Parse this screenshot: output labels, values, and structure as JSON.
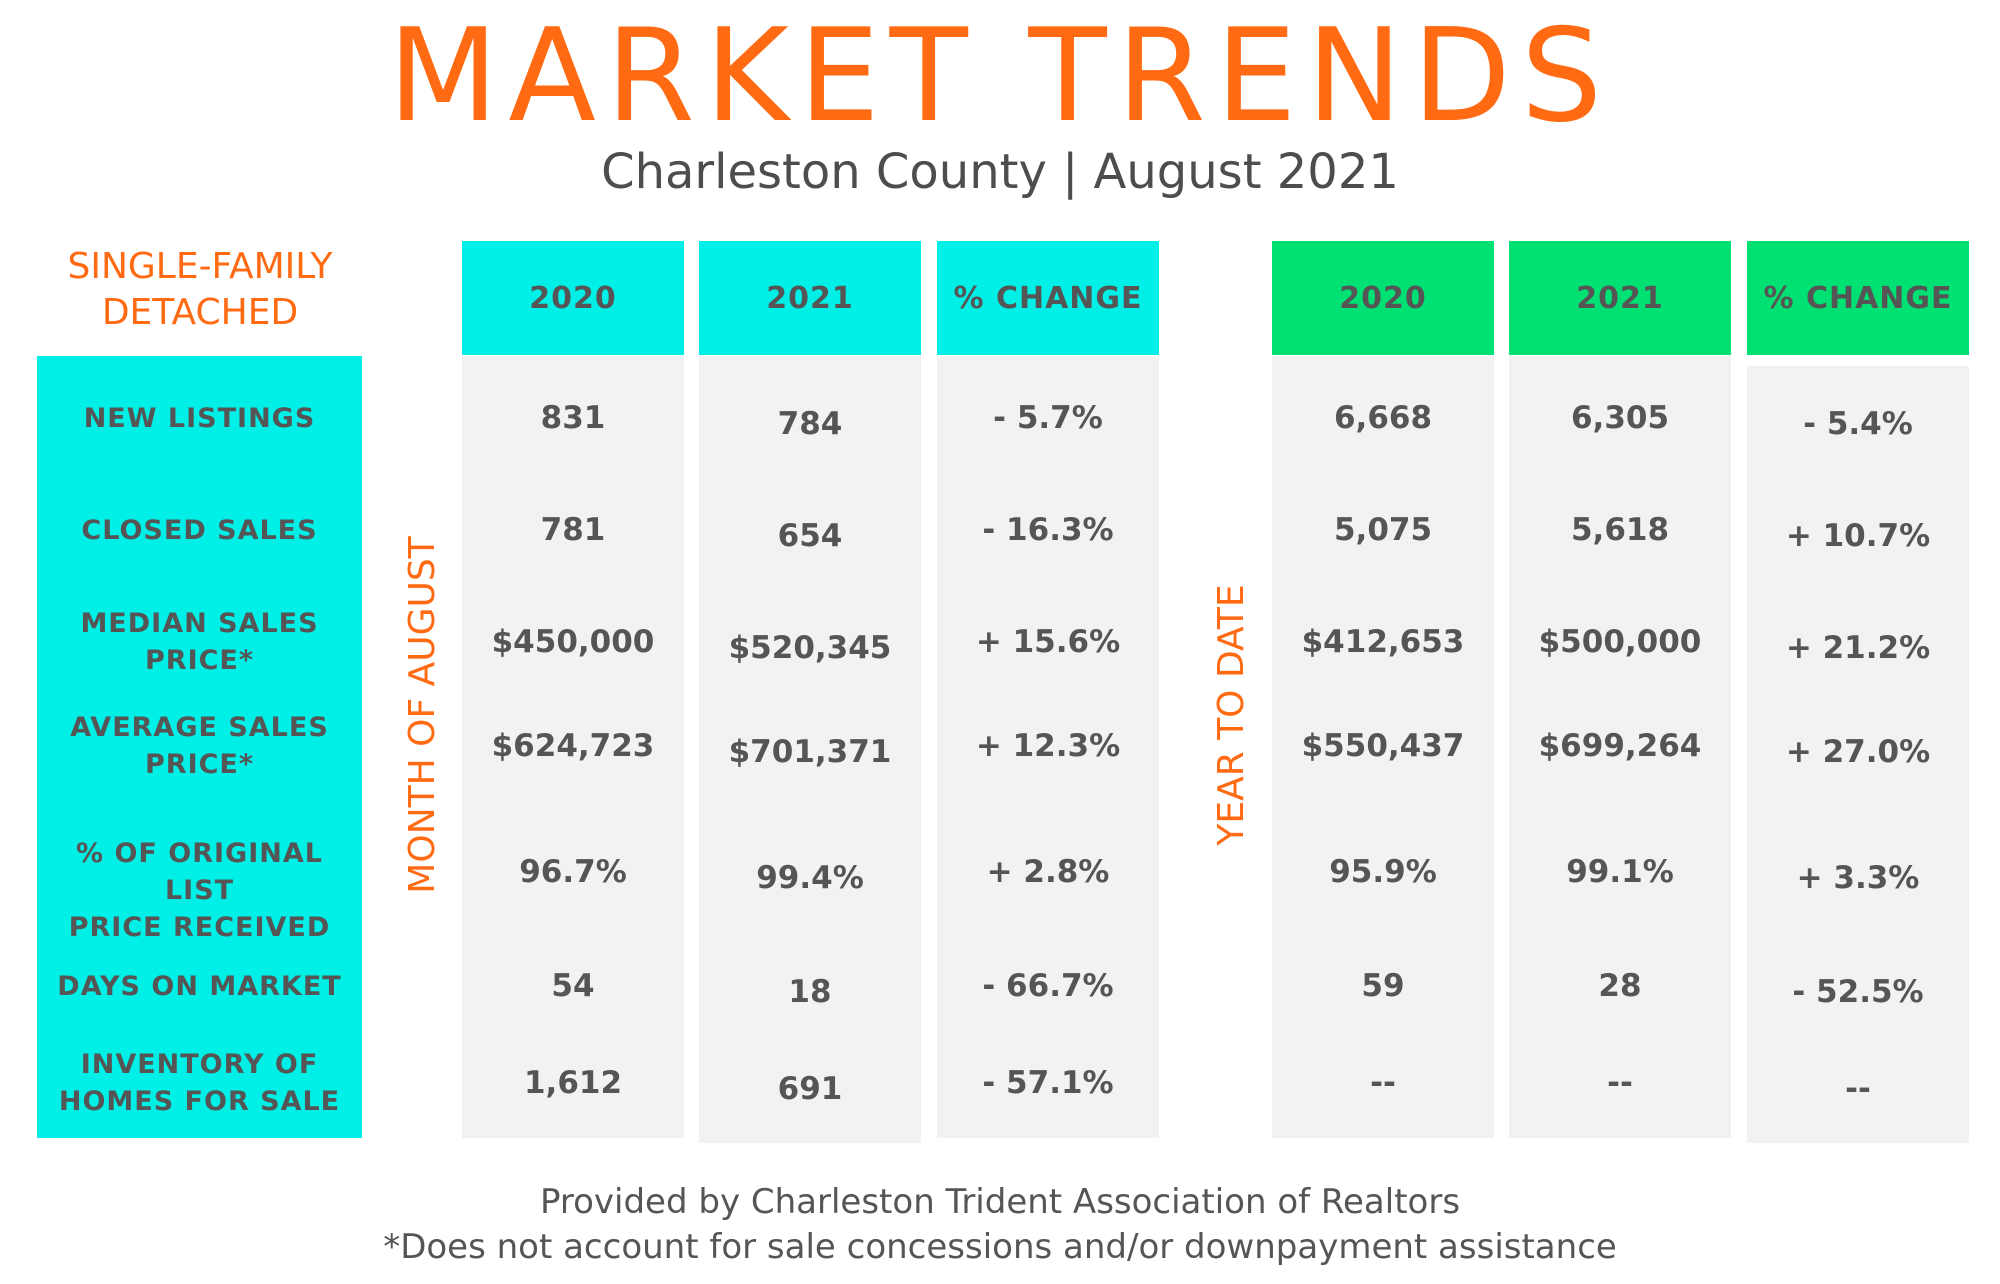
{
  "header": {
    "title": "MARKET TRENDS",
    "subtitle": "Charleston County | August 2021"
  },
  "category": [
    "SINGLE-FAMILY",
    "DETACHED"
  ],
  "colors": {
    "accent": "#ff6a13",
    "cyan": "#00efe6",
    "green": "#00e173",
    "cell_bg": "#f2f2f2",
    "text": "#555555"
  },
  "sections": {
    "month": {
      "label": "MONTH OF AUGUST",
      "headers": [
        "2020",
        "2021",
        "% CHANGE"
      ]
    },
    "ytd": {
      "label": "YEAR TO DATE",
      "headers": [
        "2020",
        "2021",
        "% CHANGE"
      ]
    }
  },
  "rows": [
    {
      "label": [
        "NEW LISTINGS"
      ],
      "month": [
        "831",
        "784",
        "- 5.7%"
      ],
      "ytd": [
        "6,668",
        "6,305",
        "- 5.4%"
      ]
    },
    {
      "label": [
        "CLOSED SALES"
      ],
      "month": [
        "781",
        "654",
        "- 16.3%"
      ],
      "ytd": [
        "5,075",
        "5,618",
        "+ 10.7%"
      ]
    },
    {
      "label": [
        "MEDIAN SALES",
        "PRICE*"
      ],
      "month": [
        "$450,000",
        "$520,345",
        "+ 15.6%"
      ],
      "ytd": [
        "$412,653",
        "$500,000",
        "+ 21.2%"
      ]
    },
    {
      "label": [
        "AVERAGE SALES",
        "PRICE*"
      ],
      "month": [
        "$624,723",
        "$701,371",
        "+ 12.3%"
      ],
      "ytd": [
        "$550,437",
        "$699,264",
        "+ 27.0%"
      ]
    },
    {
      "label": [
        "% OF ORIGINAL LIST",
        "PRICE RECEIVED"
      ],
      "month": [
        "96.7%",
        "99.4%",
        "+ 2.8%"
      ],
      "ytd": [
        "95.9%",
        "99.1%",
        "+ 3.3%"
      ]
    },
    {
      "label": [
        "DAYS ON MARKET"
      ],
      "month": [
        "54",
        "18",
        "- 66.7%"
      ],
      "ytd": [
        "59",
        "28",
        "- 52.5%"
      ]
    },
    {
      "label": [
        "INVENTORY OF",
        "HOMES FOR SALE"
      ],
      "month": [
        "1,612",
        "691",
        "- 57.1%"
      ],
      "ytd": [
        "--",
        "--",
        "--"
      ]
    }
  ],
  "footer": {
    "line1": "Provided by Charleston Trident Association of Realtors",
    "line2": "*Does not account for sale concessions and/or downpayment assistance"
  }
}
